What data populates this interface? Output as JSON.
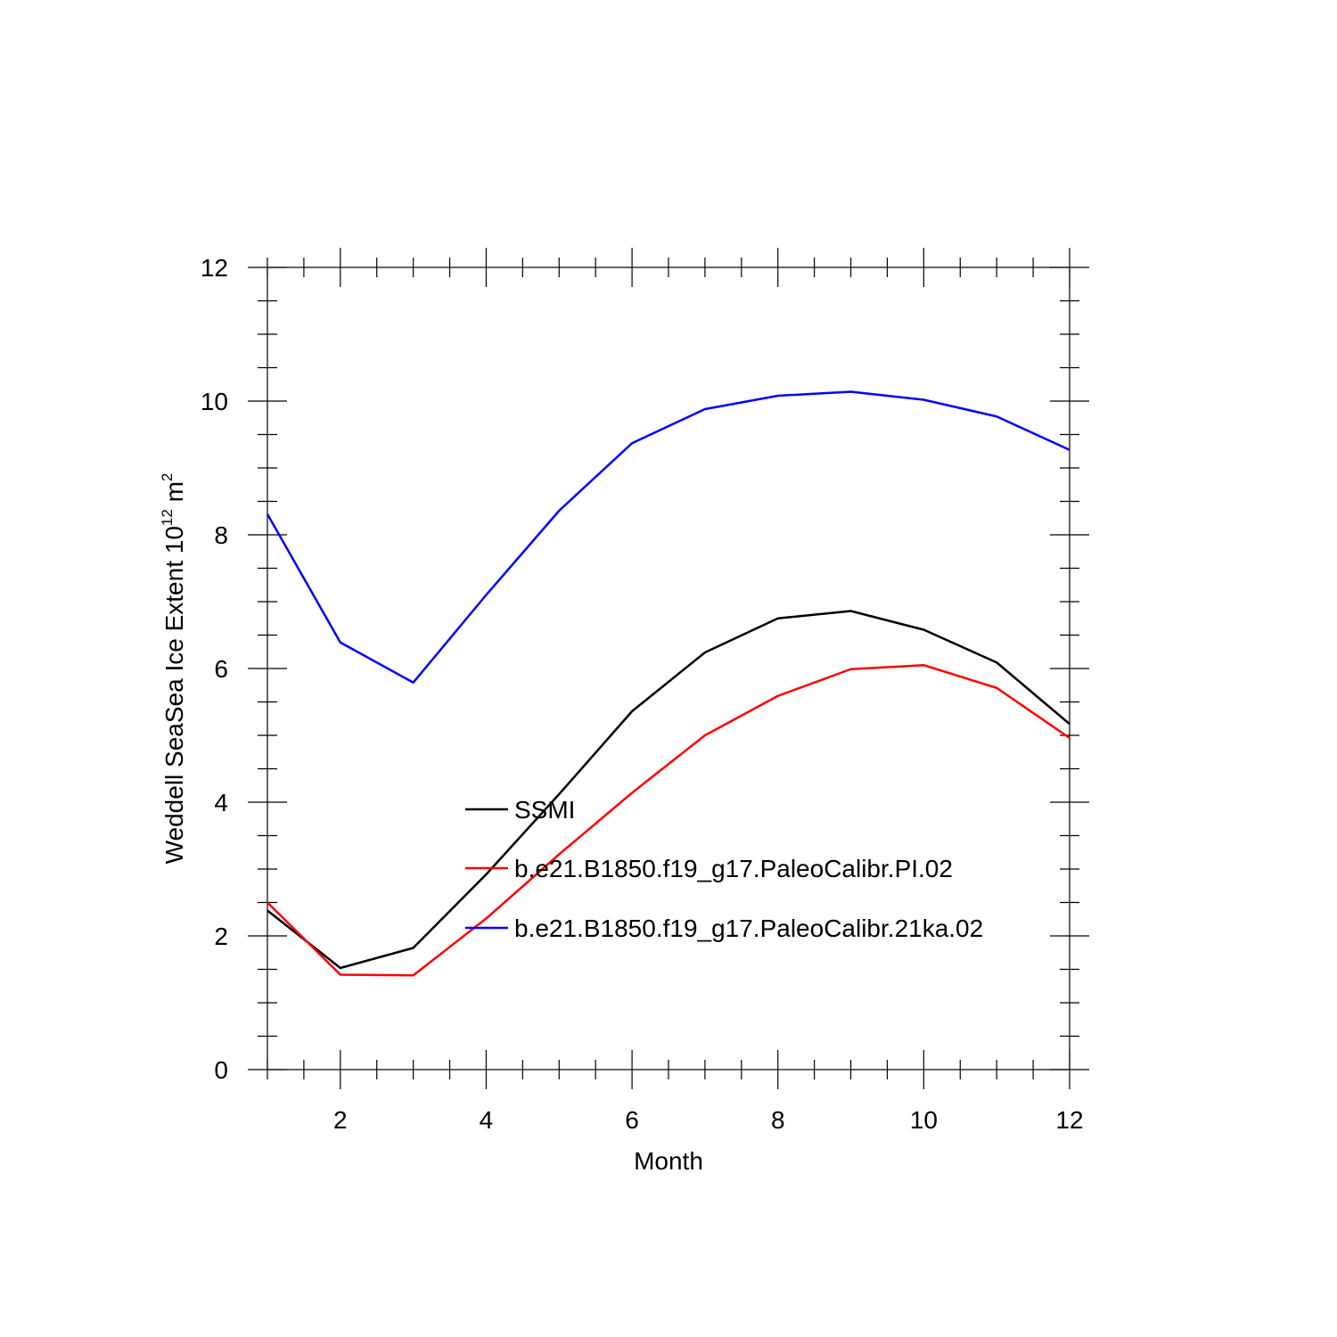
{
  "chart_data": {
    "type": "line",
    "title": "",
    "xlabel": "Month",
    "ylabel": {
      "prefix": "Weddell SeaSea Ice Extent 10",
      "superscript1": "12",
      "mid": " m",
      "superscript2": "2"
    },
    "xlim": [
      1,
      12
    ],
    "ylim": [
      0,
      12
    ],
    "xticks": [
      2,
      4,
      6,
      8,
      10,
      12
    ],
    "yticks": [
      0,
      2,
      4,
      6,
      8,
      10,
      12
    ],
    "grid": false,
    "legend_position": "inside-center",
    "x": [
      1,
      2,
      3,
      4,
      5,
      6,
      7,
      8,
      9,
      10,
      11,
      12
    ],
    "series": [
      {
        "name": "SSMI",
        "color": "#000000",
        "values": [
          2.38,
          1.52,
          1.82,
          2.92,
          4.12,
          5.36,
          6.24,
          6.75,
          6.86,
          6.58,
          6.09,
          5.17
        ]
      },
      {
        "name": "b.e21.B1850.f19_g17.PaleoCalibr.PI.02",
        "color": "#ff0000",
        "values": [
          2.5,
          1.42,
          1.41,
          2.26,
          3.22,
          4.14,
          5.0,
          5.59,
          5.99,
          6.05,
          5.71,
          4.96
        ]
      },
      {
        "name": "b.e21.B1850.f19_g17.PaleoCalibr.21ka.02",
        "color": "#0000ff",
        "values": [
          8.31,
          6.39,
          5.79,
          7.1,
          8.36,
          9.37,
          9.88,
          10.08,
          10.14,
          10.02,
          9.77,
          9.27
        ]
      }
    ]
  }
}
